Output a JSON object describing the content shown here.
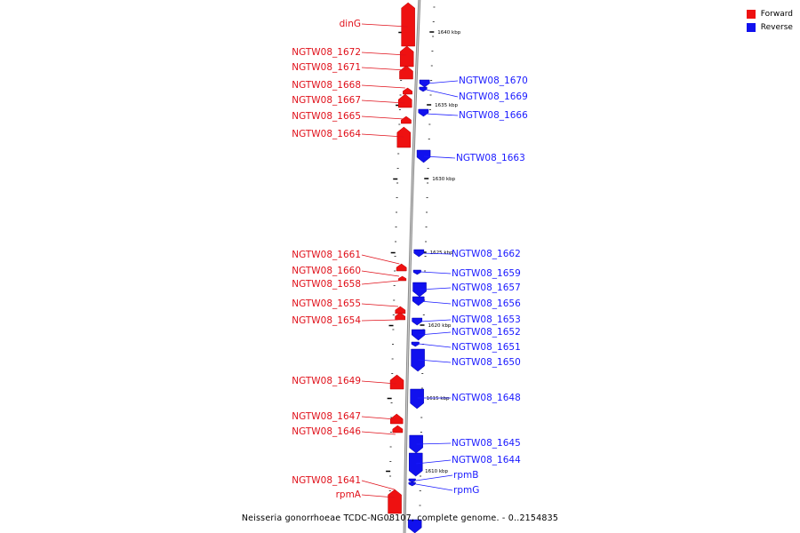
{
  "legend": {
    "forward": {
      "label": "Forward",
      "color": "#ee1111"
    },
    "reverse": {
      "label": "Reverse",
      "color": "#1111ee"
    }
  },
  "caption": "Neisseria gonorrhoeae TCDC-NG08107, complete genome. - 0..2154835",
  "scale_ticks": [
    "1640 kbp",
    "1635 kbp",
    "1630 kbp",
    "1625 kbp",
    "1620 kbp",
    "1615 kbp",
    "1610 kbp"
  ],
  "forward_genes": [
    "dinG",
    "NGTW08_1672",
    "NGTW08_1671",
    "NGTW08_1668",
    "NGTW08_1667",
    "NGTW08_1665",
    "NGTW08_1664",
    "NGTW08_1661",
    "NGTW08_1660",
    "NGTW08_1658",
    "NGTW08_1655",
    "NGTW08_1654",
    "NGTW08_1649",
    "NGTW08_1647",
    "NGTW08_1646",
    "NGTW08_1641",
    "rpmA"
  ],
  "reverse_genes": [
    "NGTW08_1670",
    "NGTW08_1669",
    "NGTW08_1666",
    "NGTW08_1663",
    "NGTW08_1662",
    "NGTW08_1659",
    "NGTW08_1657",
    "NGTW08_1656",
    "NGTW08_1653",
    "NGTW08_1652",
    "NGTW08_1651",
    "NGTW08_1650",
    "NGTW08_1648",
    "NGTW08_1645",
    "NGTW08_1644",
    "rpmB",
    "rpmG"
  ]
}
